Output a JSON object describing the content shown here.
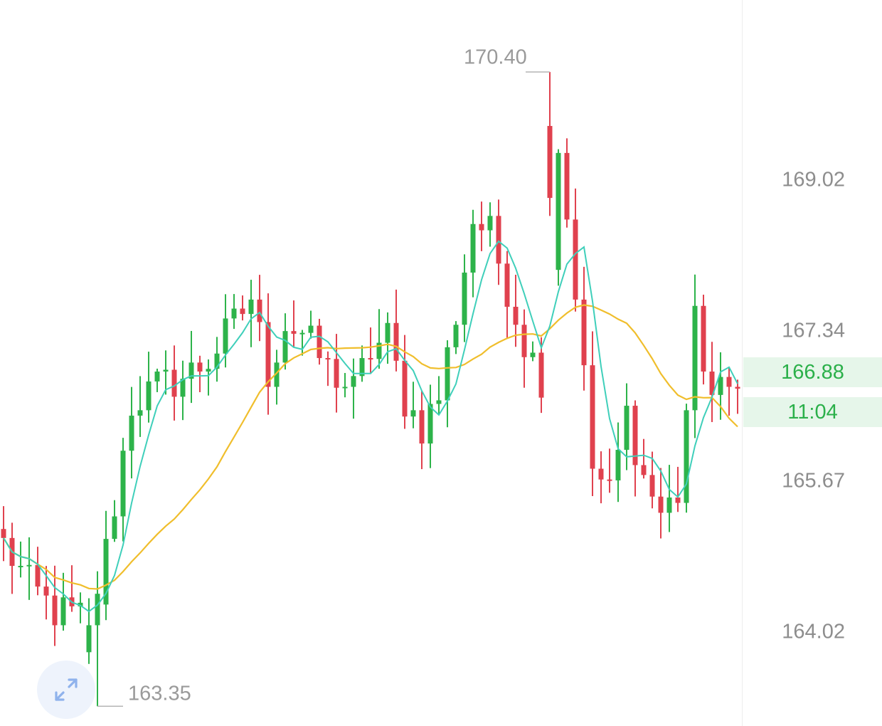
{
  "colors": {
    "up": "#2db34a",
    "down": "#e0414e",
    "ma_short": "#3fcfba",
    "ma_long": "#f0be2c",
    "price_badge_bg": "#e6f6ea",
    "price_badge_text": "#2bb04a",
    "axis_text": "#8d8d8d"
  },
  "axis": {
    "ticks": [
      "169.02",
      "167.34",
      "165.67",
      "164.02"
    ]
  },
  "current_price": {
    "value": "166.88",
    "countdown": "11:04"
  },
  "extremes": {
    "max_label": "170.40",
    "min_label": "163.35"
  },
  "controls": {
    "expand_icon": "expand-arrows-icon"
  },
  "chart_data": {
    "type": "candlestick",
    "title": "",
    "xlabel": "",
    "ylabel": "",
    "ylim": [
      163.13,
      171.2
    ],
    "y_ticks": [
      169.02,
      167.34,
      165.67,
      164.02
    ],
    "grid": false,
    "last_price": 166.88,
    "candle_count": 87,
    "extremes": {
      "high": 170.4,
      "low": 163.35
    },
    "key_candles": [
      {
        "index": 10,
        "open": 163.95,
        "close": 164.25,
        "high": 164.55,
        "low": 163.82
      },
      {
        "index": 11,
        "open": 164.25,
        "close": 164.6,
        "high": 164.85,
        "low": 163.35
      },
      {
        "index": 64,
        "open": 169.8,
        "close": 169.0,
        "high": 170.4,
        "low": 168.8
      },
      {
        "index": 86,
        "open": 166.9,
        "close": 166.88,
        "high": 166.98,
        "low": 166.6
      }
    ],
    "series": [
      {
        "indicator": "short moving average",
        "color": "#3fcfba"
      },
      {
        "indicator": "long moving average",
        "color": "#f0be2c"
      }
    ]
  }
}
